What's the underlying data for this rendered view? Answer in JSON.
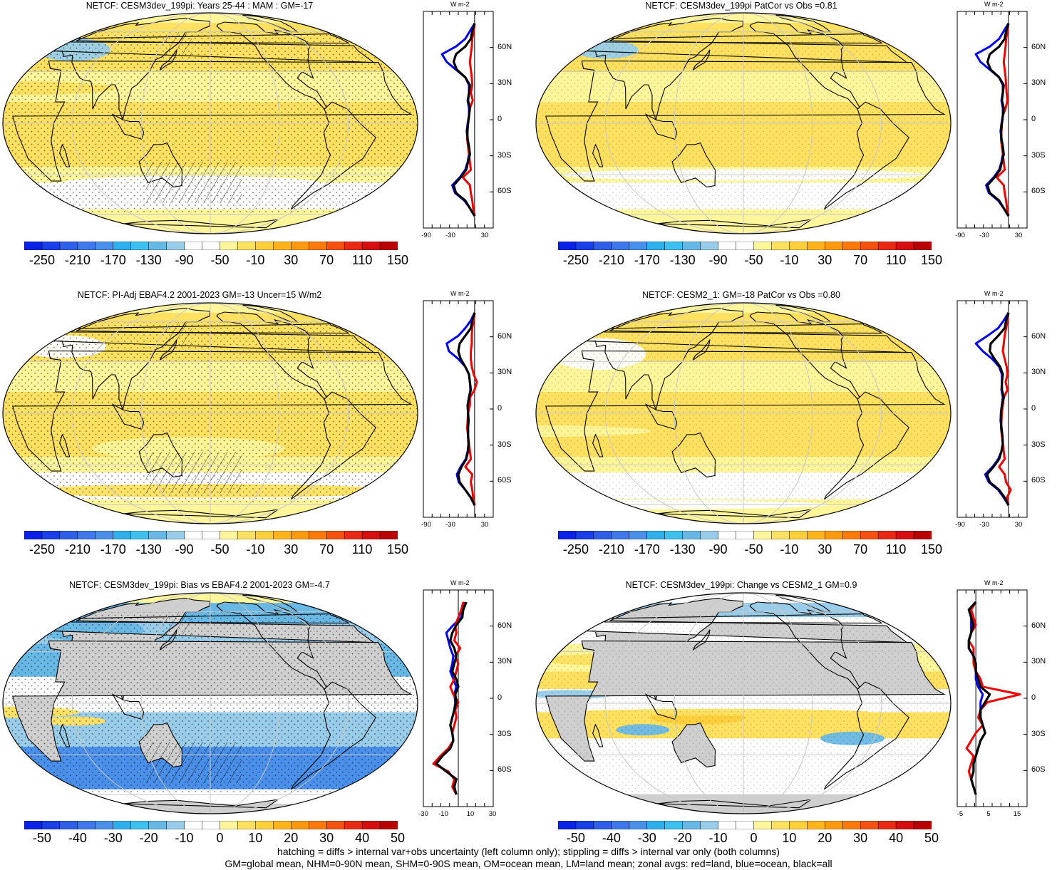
{
  "panels": [
    {
      "title": "NETCF: CESM3dev_199pi: Years 25-44 : MAM : GM=-17",
      "col": 0,
      "row": 0,
      "kind": "mean",
      "hatch": true
    },
    {
      "title": "NETCF: CESM3dev_199pi PatCor vs Obs =0.81",
      "col": 1,
      "row": 0,
      "kind": "mean",
      "hatch": false
    },
    {
      "title": "NETCF: PI-Adj EBAF4.2 2001-2023 GM=-13 Uncer=15 W/m2",
      "col": 0,
      "row": 1,
      "kind": "mean",
      "hatch": true
    },
    {
      "title": "NETCF: CESM2_1: GM=-18 PatCor vs Obs =0.80",
      "col": 1,
      "row": 1,
      "kind": "mean",
      "hatch": false
    },
    {
      "title": "NETCF: CESM3dev_199pi: Bias vs EBAF4.2 2001-2023 GM=-4.7",
      "col": 0,
      "row": 2,
      "kind": "diff",
      "hatch": true
    },
    {
      "title": "NETCF: CESM3dev_199pi: Change vs CESM2_1 GM=0.9",
      "col": 1,
      "row": 2,
      "kind": "diff2",
      "hatch": false
    }
  ],
  "colorbars": {
    "mean_labels": [
      "-250",
      "-210",
      "-170",
      "-130",
      "-90",
      "-50",
      "-10",
      "30",
      "70",
      "110",
      "150"
    ],
    "diff_labels": [
      "-50",
      "-40",
      "-30",
      "-20",
      "-10",
      "0",
      "10",
      "20",
      "30",
      "40",
      "50"
    ],
    "colors": [
      "#0a22e6",
      "#1a3fe6",
      "#2e5fe6",
      "#3f78e8",
      "#4a90ea",
      "#2fb0ec",
      "#3ec0ee",
      "#68b8e6",
      "#99cce8",
      "#ffffff",
      "#ffffff",
      "#fff59a",
      "#ffe060",
      "#ffcf3c",
      "#ffb41e",
      "#ff9a10",
      "#ff7a0a",
      "#f45210",
      "#e82a14",
      "#d40e0e",
      "#b80000"
    ]
  },
  "zonal": {
    "unit": "W m-2",
    "lat_labels": [
      "60N",
      "30N",
      "0",
      "30S",
      "60S"
    ],
    "x_labels_mean": [
      "-90",
      "-30",
      "30"
    ],
    "x_labels_bias": [
      "-30",
      "-10",
      "10",
      "30"
    ],
    "x_labels_change": [
      "-5",
      "5",
      "15"
    ],
    "line_colors": {
      "land": "#ee0000",
      "ocean": "#0000ee",
      "all": "#000000"
    }
  },
  "map_colors": {
    "gray_missing": "#cfcfcf",
    "graticule": "#c8c8c8",
    "coast": "#000000"
  },
  "footer": [
    "hatching = diffs > internal var+obs uncertainty (left column only); stippling = diffs > internal var only (both columns)",
    "GM=global mean, NHM=0-90N mean, SHM=0-90S mean, OM=ocean mean, LM=land mean; zonal avgs: red=land, blue=ocean, black=all"
  ]
}
